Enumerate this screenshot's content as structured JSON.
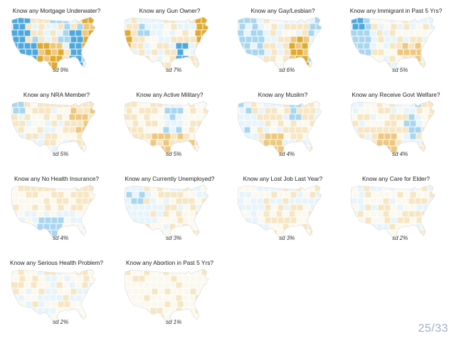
{
  "page": {
    "current": "25",
    "separator": "/",
    "total": "33"
  },
  "colors": {
    "strong_negative": "#4ea8de",
    "moderate_negative": "#a9d6ef",
    "weak_negative": "#e8f4fb",
    "neutral": "#fbf8ef",
    "weak_positive": "#f6e6c3",
    "moderate_positive": "#edc87e",
    "strong_positive": "#e0aa2e",
    "state_border": "#ffffff"
  },
  "chart_data": [
    {
      "type": "choropleth",
      "title": "Know any Mortgage Underwater?",
      "sd": "sd 9%",
      "sd_value": 9,
      "dominant": "strong",
      "pattern": "west-strong-blue_south-central-strong-gold"
    },
    {
      "type": "choropleth",
      "title": "Know any Gun Owner?",
      "sd": "sd 7%",
      "sd_value": 7,
      "dominant": "strong",
      "pattern": "california-gold_northeast-gold_mountain-blue"
    },
    {
      "type": "choropleth",
      "title": "Know any Gay/Lesbian?",
      "sd": "sd 6%",
      "sd_value": 6,
      "dominant": "moderate",
      "pattern": "southeast-gold_west-blue"
    },
    {
      "type": "choropleth",
      "title": "Know any Immigrant in Past 5 Yrs?",
      "sd": "sd 5%",
      "sd_value": 5,
      "dominant": "moderate",
      "pattern": "northwest-blue_southeast-gold"
    },
    {
      "type": "choropleth",
      "title": "Know any NRA Member?",
      "sd": "sd 5%",
      "sd_value": 5,
      "dominant": "moderate",
      "pattern": "northwest-blue_east-gold"
    },
    {
      "type": "choropleth",
      "title": "Know any Active Military?",
      "sd": "sd 5%",
      "sd_value": 5,
      "dominant": "moderate",
      "pattern": "south-gold_central-blue"
    },
    {
      "type": "choropleth",
      "title": "Know any Muslim?",
      "sd": "sd 4%",
      "sd_value": 4,
      "dominant": "moderate",
      "pattern": "west-blue_texas-gold"
    },
    {
      "type": "choropleth",
      "title": "Know any Receive Govt Welfare?",
      "sd": "sd 4%",
      "sd_value": 4,
      "dominant": "moderate",
      "pattern": "texas-gold_east-blue"
    },
    {
      "type": "choropleth",
      "title": "Know any No Health Insurance?",
      "sd": "sd 4%",
      "sd_value": 4,
      "dominant": "weak",
      "pattern": "south-blue_north-gold"
    },
    {
      "type": "choropleth",
      "title": "Know any Currently Unemployed?",
      "sd": "sd 3%",
      "sd_value": 3,
      "dominant": "weak",
      "pattern": "west-blue_southeast-gold"
    },
    {
      "type": "choropleth",
      "title": "Know any Lost Job Last Year?",
      "sd": "sd 3%",
      "sd_value": 3,
      "dominant": "weak",
      "pattern": "west-blue_south-gold"
    },
    {
      "type": "choropleth",
      "title": "Know any Care for Elder?",
      "sd": "sd 2%",
      "sd_value": 2,
      "dominant": "very-weak",
      "pattern": "mostly-neutral"
    },
    {
      "type": "choropleth",
      "title": "Know any Serious Health Problem?",
      "sd": "sd 2%",
      "sd_value": 2,
      "dominant": "very-weak",
      "pattern": "mostly-neutral"
    },
    {
      "type": "choropleth",
      "title": "Know any Abortion in Past 5 Yrs?",
      "sd": "sd 1%",
      "sd_value": 1,
      "dominant": "very-weak",
      "pattern": "uniform-neutral"
    }
  ]
}
